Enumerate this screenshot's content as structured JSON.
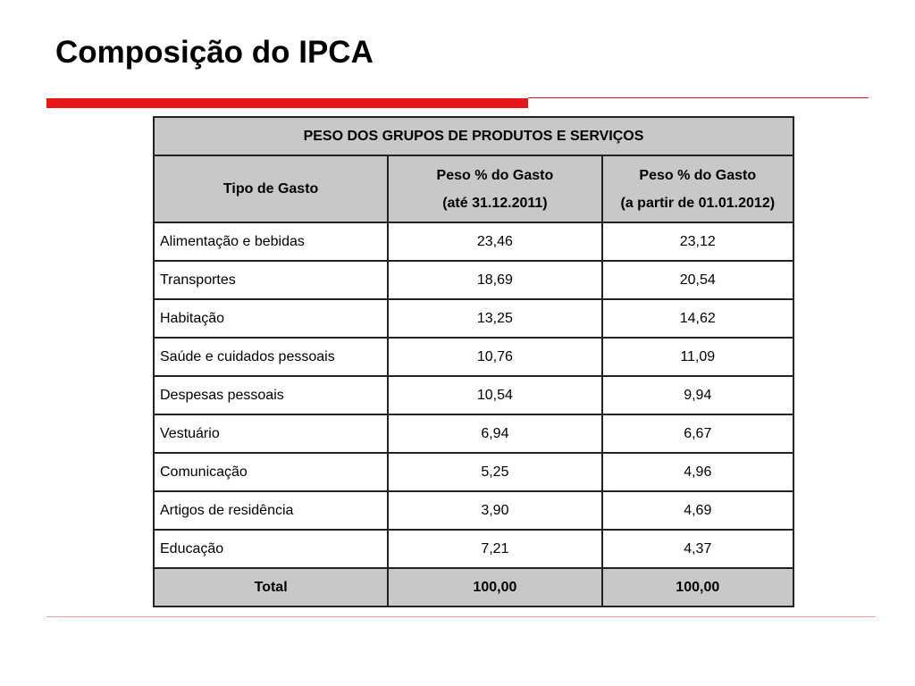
{
  "slide": {
    "title": "Composição do IPCA",
    "colors": {
      "accent": "#e8151b",
      "table_header_bg": "#c8c8c8",
      "table_border": "#222222"
    }
  },
  "table": {
    "caption": "PESO DOS GRUPOS DE PRODUTOS E SERVIÇOS",
    "headers": {
      "type": "Tipo de Gasto",
      "col_2011_line1": "Peso % do Gasto",
      "col_2011_line2": "(até 31.12.2011)",
      "col_2012_line1": "Peso % do Gasto",
      "col_2012_line2": "(a partir de 01.01.2012)"
    },
    "rows": [
      {
        "label": "Alimentação e bebidas",
        "v2011": "23,46",
        "v2012": "23,12"
      },
      {
        "label": "Transportes",
        "v2011": "18,69",
        "v2012": "20,54"
      },
      {
        "label": "Habitação",
        "v2011": "13,25",
        "v2012": "14,62"
      },
      {
        "label": "Saúde e cuidados pessoais",
        "v2011": "10,76",
        "v2012": "11,09"
      },
      {
        "label": "Despesas pessoais",
        "v2011": "10,54",
        "v2012": "9,94"
      },
      {
        "label": "Vestuário",
        "v2011": "6,94",
        "v2012": "6,67"
      },
      {
        "label": "Comunicação",
        "v2011": "5,25",
        "v2012": "4,96"
      },
      {
        "label": "Artigos de residência",
        "v2011": "3,90",
        "v2012": "4,69"
      },
      {
        "label": "Educação",
        "v2011": "7,21",
        "v2012": "4,37"
      }
    ],
    "total": {
      "label": "Total",
      "v2011": "100,00",
      "v2012": "100,00"
    }
  }
}
